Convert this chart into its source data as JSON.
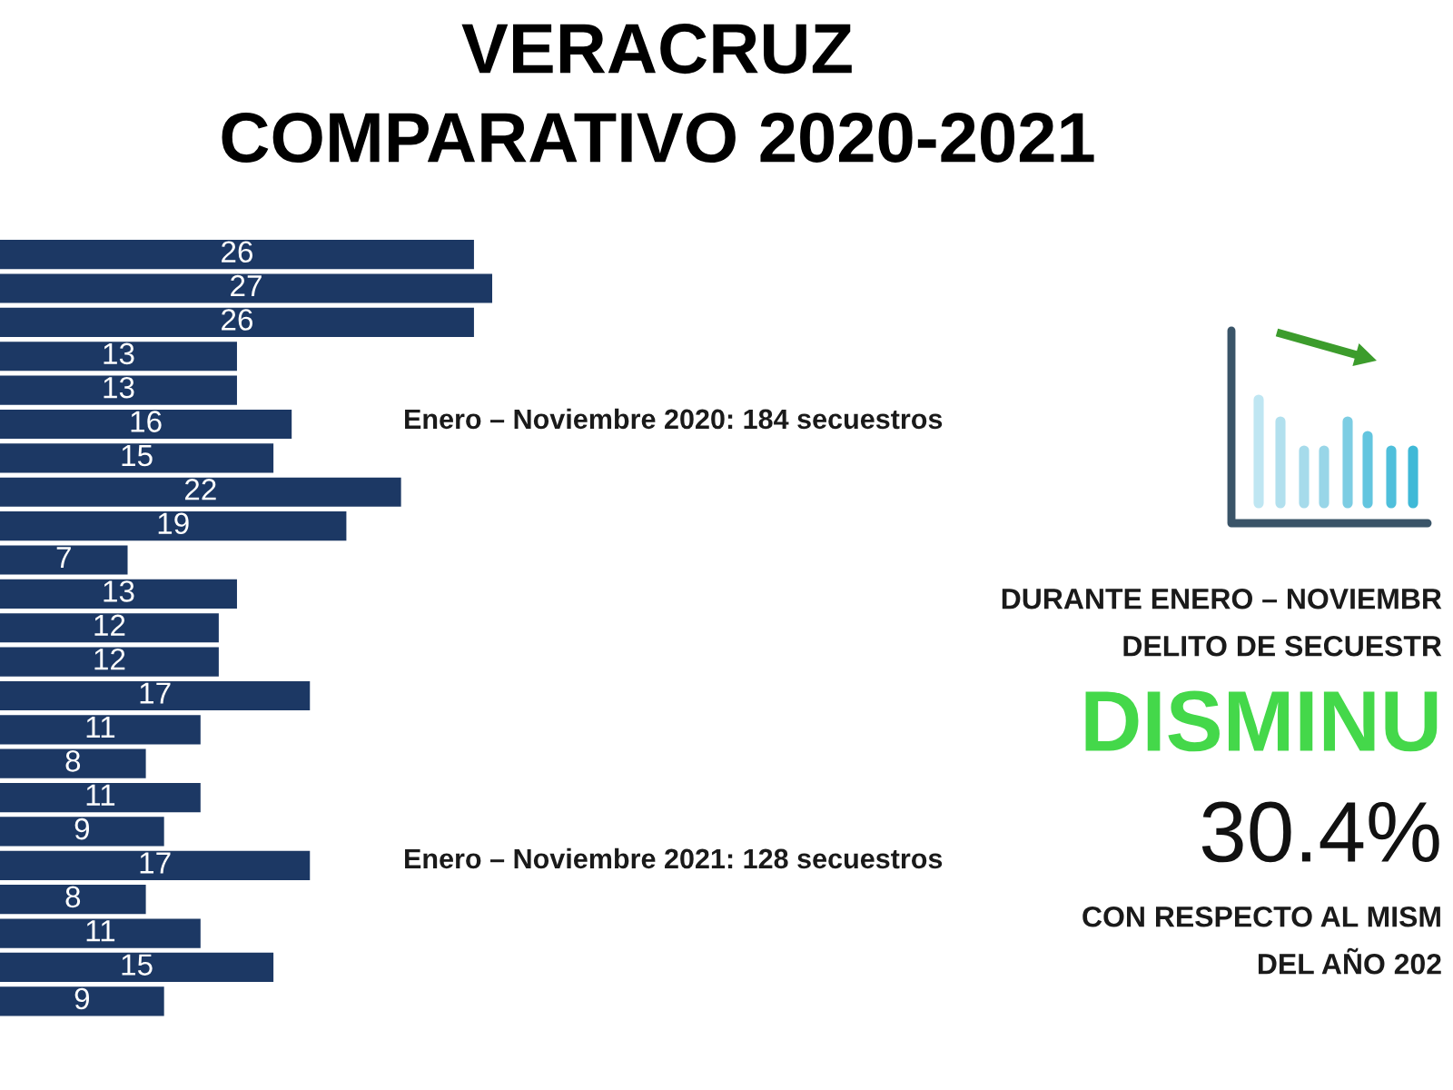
{
  "chart_data": [
    {
      "type": "bar",
      "orientation": "horizontal",
      "title": "VERACRUZ\nCOMPARATIVO 2020-2021",
      "categories": [
        null,
        null,
        null,
        null,
        null,
        null,
        null,
        null,
        null,
        null,
        null,
        null,
        null,
        null,
        null,
        null,
        null,
        null,
        null,
        null,
        null,
        null,
        null
      ],
      "values": [
        26,
        27,
        26,
        13,
        13,
        16,
        15,
        22,
        19,
        7,
        13,
        12,
        12,
        17,
        11,
        8,
        11,
        9,
        17,
        8,
        11,
        15,
        9
      ],
      "color": "#1c3864",
      "data_labels": true,
      "annotations": [
        "Enero – Noviembre 2020: 184 secuestros",
        "Enero – Noviembre 2021: 128 secuestros"
      ]
    },
    {
      "type": "other",
      "annotations": [
        "DURANTE ENERO – NOVIEMBR",
        "DELITO DE SECUESTR",
        "DISMINU",
        "30.4%",
        "CON RESPECTO AL MISM",
        "DEL AÑO 202"
      ]
    }
  ]
}
